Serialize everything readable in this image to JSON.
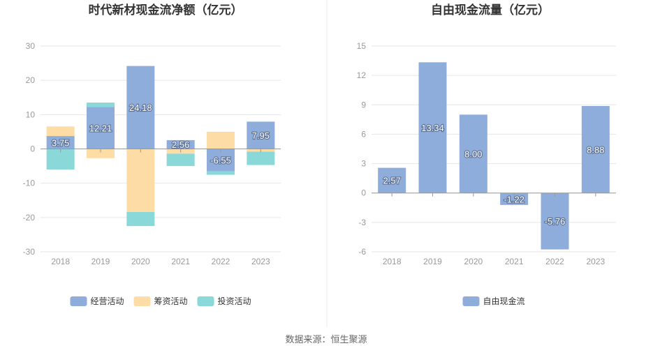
{
  "source": "数据来源：恒生聚源",
  "charts": [
    {
      "id": "left",
      "title": "时代新材现金流净额（亿元）",
      "chart_data": {
        "type": "bar",
        "stacked": true,
        "categories": [
          "2018",
          "2019",
          "2020",
          "2021",
          "2022",
          "2023"
        ],
        "ylim": [
          -30,
          30
        ],
        "yticks": [
          -30,
          -20,
          -10,
          0,
          10,
          20,
          30
        ],
        "grid": true,
        "legend_position": "bottom",
        "series": [
          {
            "name": "经营活动",
            "color": "#8eaddb",
            "values": [
              3.75,
              12.21,
              24.18,
              2.56,
              -6.55,
              7.95
            ]
          },
          {
            "name": "筹资活动",
            "color": "#fddca6",
            "values": [
              2.8,
              -2.7,
              -18.4,
              -1.4,
              5.0,
              -0.8
            ]
          },
          {
            "name": "投资活动",
            "color": "#8bd8d8",
            "values": [
              -6.0,
              1.3,
              -4.1,
              -3.6,
              -1.0,
              -3.9
            ]
          }
        ],
        "data_labels": [
          "3.75",
          "12.21",
          "24.18",
          "2.56",
          "-6.55",
          "7.95"
        ]
      }
    },
    {
      "id": "right",
      "title": "自由现金流量（亿元）",
      "chart_data": {
        "type": "bar",
        "categories": [
          "2018",
          "2019",
          "2020",
          "2021",
          "2022",
          "2023"
        ],
        "ylim": [
          -6,
          15
        ],
        "yticks": [
          -6,
          -3,
          0,
          3,
          6,
          9,
          12,
          15
        ],
        "grid": true,
        "legend_position": "bottom",
        "series": [
          {
            "name": "自由现金流",
            "color": "#8eaddb",
            "values": [
              2.57,
              13.34,
              8.0,
              -1.22,
              -5.76,
              8.88
            ]
          }
        ],
        "data_labels": [
          "2.57",
          "13.34",
          "8.00",
          "-1.22",
          "-5.76",
          "8.88"
        ]
      }
    }
  ]
}
